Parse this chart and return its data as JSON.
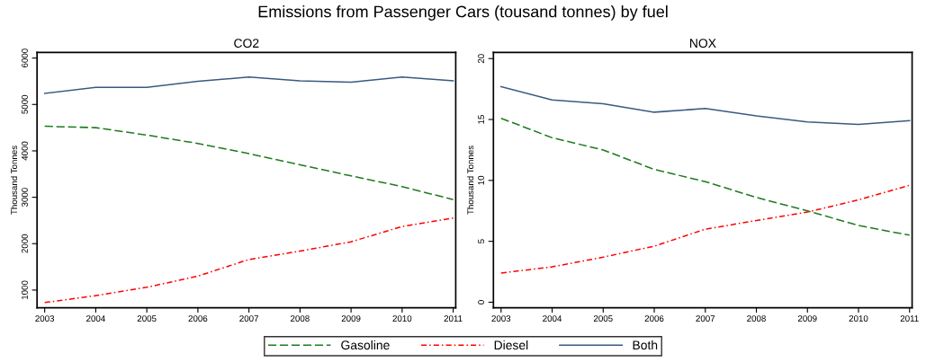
{
  "chart_data": [
    {
      "type": "line",
      "title": "CO2",
      "ylabel": "Thousand Tonnes",
      "annotations": [
        "Emissions from Passenger Cars (tousand tonnes) by fuel"
      ],
      "x": [
        2003,
        2004,
        2005,
        2006,
        2007,
        2008,
        2009,
        2010,
        2011
      ],
      "xlim": [
        2002.85,
        2011.05
      ],
      "xticks": [
        2003,
        2004,
        2005,
        2006,
        2007,
        2008,
        2009,
        2010,
        2011
      ],
      "ylim": [
        620,
        6120
      ],
      "yticks": [
        1000,
        2000,
        3000,
        4000,
        5000,
        6000
      ],
      "grid": false,
      "legend": "bottom",
      "series": [
        {
          "name": "Gasoline",
          "color": "#1e7b1e",
          "line_style": "dashed",
          "values": [
            4530,
            4500,
            4340,
            4160,
            3940,
            3700,
            3460,
            3230,
            2950
          ]
        },
        {
          "name": "Diesel",
          "color": "#ff0000",
          "line_style": "dotted",
          "values": [
            730,
            880,
            1060,
            1300,
            1660,
            1840,
            2040,
            2370,
            2550
          ]
        },
        {
          "name": "Both",
          "color": "#3a5a80",
          "line_style": "solid",
          "values": [
            5240,
            5370,
            5370,
            5500,
            5590,
            5510,
            5480,
            5590,
            5510
          ]
        }
      ]
    },
    {
      "type": "line",
      "title": "NOX",
      "ylabel": "Thousand Tonnes",
      "x": [
        2003,
        2004,
        2005,
        2006,
        2007,
        2008,
        2009,
        2010,
        2011
      ],
      "xlim": [
        2002.85,
        2011.05
      ],
      "xticks": [
        2003,
        2004,
        2005,
        2006,
        2007,
        2008,
        2009,
        2010,
        2011
      ],
      "ylim": [
        -0.45,
        20.5
      ],
      "yticks": [
        0,
        5,
        10,
        15,
        20
      ],
      "grid": false,
      "series": [
        {
          "color": "#1e7b1e",
          "line_style": "dashed",
          "values": [
            15.1,
            13.5,
            12.5,
            10.9,
            9.9,
            8.6,
            7.5,
            6.3,
            5.5
          ]
        },
        {
          "color": "#ff0000",
          "line_style": "dotted",
          "values": [
            2.4,
            2.9,
            3.7,
            4.6,
            6.0,
            6.7,
            7.4,
            8.4,
            9.6
          ]
        },
        {
          "color": "#3a5a80",
          "line_style": "solid",
          "values": [
            17.7,
            16.6,
            16.3,
            15.6,
            15.9,
            15.3,
            14.8,
            14.6,
            14.9
          ]
        }
      ]
    }
  ]
}
